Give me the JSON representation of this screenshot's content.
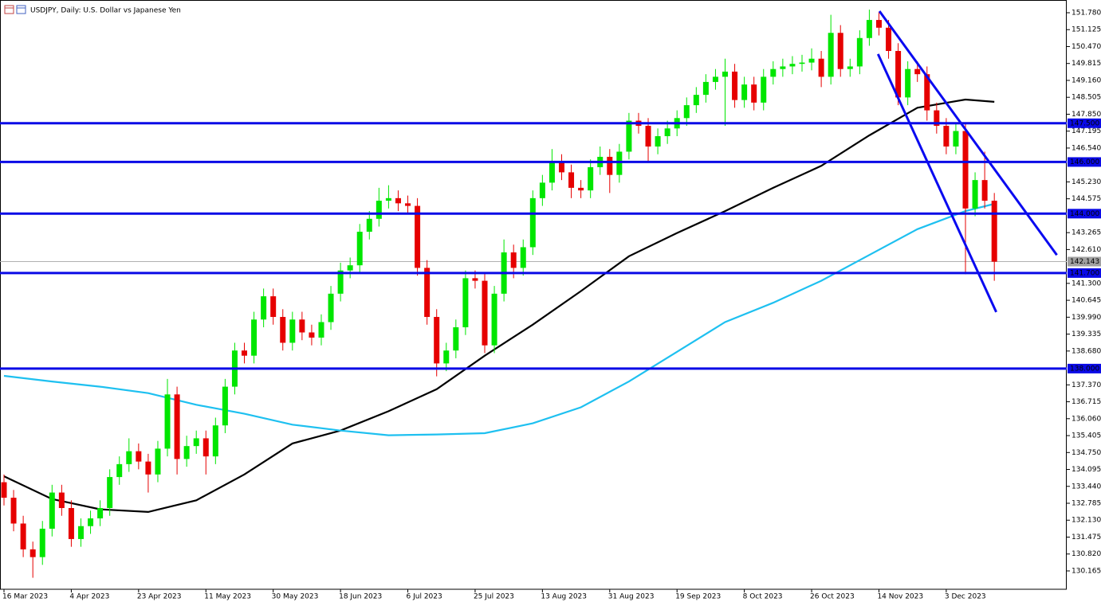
{
  "chart_data": {
    "type": "candlestick",
    "title": "USDJPY, Daily:  U.S. Dollar vs Japanese Yen",
    "up_color": "#00e600",
    "down_color": "#e60000",
    "categories": [
      "16 Mar 2023",
      null,
      null,
      null,
      null,
      null,
      null,
      "4 Apr 2023",
      null,
      null,
      null,
      null,
      null,
      null,
      "23 Apr 2023",
      null,
      null,
      null,
      null,
      null,
      null,
      "11 May 2023",
      null,
      null,
      null,
      null,
      null,
      null,
      "30 May 2023",
      null,
      null,
      null,
      null,
      null,
      null,
      "18 Jun 2023",
      null,
      null,
      null,
      null,
      null,
      null,
      "6 Jul 2023",
      null,
      null,
      null,
      null,
      null,
      null,
      "25 Jul 2023",
      null,
      null,
      null,
      null,
      null,
      null,
      "13 Aug 2023",
      null,
      null,
      null,
      null,
      null,
      null,
      "31 Aug 2023",
      null,
      null,
      null,
      null,
      null,
      null,
      "19 Sep 2023",
      null,
      null,
      null,
      null,
      null,
      null,
      "8 Oct 2023",
      null,
      null,
      null,
      null,
      null,
      null,
      "26 Oct 2023",
      null,
      null,
      null,
      null,
      null,
      null,
      "14 Nov 2023",
      null,
      null,
      null,
      null,
      null,
      null,
      "3 Dec 2023",
      null,
      null,
      null,
      null,
      null
    ],
    "open": [
      133.6,
      133.0,
      132.0,
      131.0,
      130.7,
      131.8,
      133.2,
      132.6,
      131.4,
      131.9,
      132.2,
      132.6,
      133.8,
      134.3,
      134.8,
      134.4,
      133.9,
      134.9,
      137.0,
      134.5,
      135.0,
      135.3,
      134.6,
      135.8,
      137.3,
      138.7,
      138.5,
      139.9,
      140.8,
      140.0,
      139.0,
      139.9,
      139.4,
      139.2,
      139.8,
      140.9,
      141.8,
      142.0,
      143.3,
      143.8,
      144.5,
      144.6,
      144.4,
      144.3,
      141.9,
      140.0,
      138.2,
      138.7,
      139.6,
      141.5,
      141.4,
      138.9,
      140.9,
      142.5,
      141.9,
      142.7,
      144.6,
      145.2,
      146.0,
      145.6,
      145.0,
      144.9,
      145.8,
      146.2,
      145.5,
      146.4,
      147.6,
      147.4,
      146.6,
      147.0,
      147.3,
      147.7,
      148.2,
      148.6,
      149.1,
      149.3,
      149.5,
      148.4,
      149.0,
      148.3,
      149.3,
      149.6,
      149.7,
      149.8,
      149.85,
      150.0,
      149.3,
      151.0,
      149.6,
      149.7,
      150.8,
      151.5,
      151.2,
      150.3,
      148.5,
      149.6,
      149.4,
      148.0,
      147.4,
      146.6,
      147.2,
      144.2,
      145.3,
      144.5
    ],
    "high": [
      133.9,
      133.3,
      132.3,
      131.3,
      132.1,
      133.5,
      133.5,
      132.9,
      132.2,
      132.5,
      132.9,
      134.1,
      134.6,
      135.3,
      135.1,
      134.7,
      135.2,
      137.6,
      137.3,
      135.4,
      135.6,
      135.6,
      136.1,
      137.6,
      139.0,
      139.0,
      140.2,
      141.1,
      141.1,
      140.3,
      140.2,
      140.2,
      139.7,
      140.1,
      141.2,
      142.1,
      142.3,
      143.6,
      144.1,
      145.0,
      145.1,
      144.9,
      144.7,
      144.6,
      142.2,
      140.3,
      139.0,
      139.9,
      141.8,
      141.8,
      141.7,
      141.2,
      143.0,
      142.8,
      143.0,
      144.9,
      145.5,
      146.5,
      146.3,
      145.9,
      145.3,
      146.1,
      146.6,
      146.5,
      146.7,
      147.9,
      147.9,
      147.7,
      147.3,
      147.6,
      148.0,
      148.5,
      148.9,
      149.4,
      149.6,
      150.0,
      149.8,
      149.3,
      149.3,
      149.6,
      149.9,
      150.0,
      150.1,
      150.15,
      150.4,
      150.3,
      151.7,
      151.3,
      150.0,
      151.1,
      151.9,
      151.8,
      151.5,
      150.6,
      149.9,
      149.9,
      149.7,
      148.3,
      147.7,
      147.5,
      147.5,
      145.6,
      146.4,
      144.8
    ],
    "low": [
      132.7,
      131.7,
      130.7,
      129.9,
      130.4,
      131.5,
      132.3,
      131.1,
      131.1,
      131.6,
      131.9,
      132.3,
      133.5,
      134.0,
      134.1,
      133.2,
      133.6,
      134.6,
      133.9,
      134.2,
      134.7,
      133.9,
      134.3,
      135.5,
      137.0,
      138.2,
      138.2,
      139.6,
      139.7,
      138.7,
      138.7,
      139.1,
      138.9,
      138.9,
      139.5,
      140.6,
      141.5,
      141.7,
      143.0,
      143.5,
      144.2,
      144.1,
      144.0,
      141.6,
      139.7,
      137.7,
      137.9,
      138.4,
      139.3,
      141.1,
      138.6,
      138.6,
      140.6,
      141.5,
      141.6,
      142.4,
      144.3,
      144.9,
      145.3,
      144.6,
      144.6,
      144.6,
      145.5,
      144.8,
      145.2,
      146.1,
      147.1,
      146.0,
      146.3,
      146.7,
      147.0,
      147.4,
      147.9,
      148.3,
      148.8,
      147.4,
      148.1,
      148.1,
      148.0,
      148.0,
      149.0,
      149.3,
      149.4,
      149.5,
      149.55,
      148.9,
      149.0,
      149.3,
      149.3,
      149.4,
      150.5,
      150.9,
      150.0,
      148.2,
      148.2,
      149.1,
      147.6,
      147.1,
      146.3,
      146.3,
      141.65,
      143.9,
      144.2,
      141.4
    ],
    "close": [
      133.0,
      132.0,
      131.0,
      130.7,
      131.8,
      133.2,
      132.6,
      131.4,
      131.9,
      132.2,
      132.6,
      133.8,
      134.3,
      134.8,
      134.4,
      133.9,
      134.9,
      137.0,
      134.5,
      135.0,
      135.3,
      134.6,
      135.8,
      137.3,
      138.7,
      138.5,
      139.9,
      140.8,
      140.0,
      139.0,
      139.9,
      139.4,
      139.2,
      139.8,
      140.9,
      141.8,
      142.0,
      143.3,
      143.8,
      144.5,
      144.6,
      144.4,
      144.3,
      141.9,
      140.0,
      138.2,
      138.7,
      139.6,
      141.5,
      141.4,
      138.9,
      140.9,
      142.5,
      141.9,
      142.7,
      144.6,
      145.2,
      146.0,
      145.6,
      145.0,
      144.9,
      145.8,
      146.2,
      145.5,
      146.4,
      147.6,
      147.4,
      146.6,
      147.0,
      147.3,
      147.7,
      148.2,
      148.6,
      149.1,
      149.3,
      149.5,
      148.4,
      149.0,
      148.3,
      149.3,
      149.6,
      149.7,
      149.8,
      149.85,
      150.0,
      149.3,
      151.0,
      149.6,
      149.7,
      150.8,
      151.5,
      151.2,
      150.3,
      148.5,
      149.6,
      149.4,
      148.0,
      147.4,
      146.6,
      147.2,
      144.2,
      145.3,
      144.5,
      142.14
    ],
    "lines": [
      {
        "color": "#000000",
        "x": [
          0,
          5,
          10,
          15,
          20,
          25,
          30,
          35,
          40,
          45,
          50,
          55,
          60,
          65,
          70,
          75,
          80,
          85,
          90,
          95,
          100,
          103
        ],
        "values": [
          133.83,
          132.95,
          132.55,
          132.45,
          132.9,
          133.9,
          135.1,
          135.6,
          136.35,
          137.2,
          138.5,
          139.7,
          141.0,
          142.35,
          143.25,
          144.1,
          145.0,
          145.85,
          147.03,
          148.1,
          148.42,
          148.33
        ]
      },
      {
        "color": "#1ec0f0",
        "x": [
          0,
          5,
          10,
          15,
          20,
          25,
          30,
          35,
          40,
          45,
          50,
          55,
          60,
          65,
          70,
          75,
          80,
          85,
          90,
          95,
          100,
          103
        ],
        "values": [
          137.72,
          137.5,
          137.3,
          137.05,
          136.6,
          136.25,
          135.83,
          135.6,
          135.42,
          135.45,
          135.5,
          135.88,
          136.5,
          137.5,
          138.65,
          139.8,
          140.55,
          141.4,
          142.4,
          143.4,
          144.1,
          144.38
        ]
      }
    ],
    "trendlines": [
      {
        "color": "#0a0af0",
        "x": [
          91.05,
          109.5
        ],
        "values": [
          151.84,
          142.4
        ]
      },
      {
        "color": "#0a0af0",
        "x": [
          90.9,
          103.2
        ],
        "values": [
          150.18,
          140.19
        ]
      }
    ],
    "levels": [
      {
        "value": 147.5,
        "label": "147.500"
      },
      {
        "value": 146.0,
        "label": "146.000"
      },
      {
        "value": 144.0,
        "label": "144.000"
      },
      {
        "value": 141.7,
        "label": "141.700"
      },
      {
        "value": 138.0,
        "label": "138.000"
      }
    ],
    "level_color": "#0a0ae6",
    "last_price": {
      "value": 142.143,
      "label": "142.143"
    },
    "xlim": [
      -0.415,
      110.53
    ],
    "ylim": [
      129.455,
      152.273
    ],
    "yticks": [
      {
        "value": 151.78,
        "label": "151.780"
      },
      {
        "value": 151.125,
        "label": "151.125"
      },
      {
        "value": 150.47,
        "label": "150.470"
      },
      {
        "value": 149.815,
        "label": "149.815"
      },
      {
        "value": 149.16,
        "label": "149.160"
      },
      {
        "value": 148.505,
        "label": "148.505"
      },
      {
        "value": 147.85,
        "label": "147.850"
      },
      {
        "value": 147.195,
        "label": "147.195"
      },
      {
        "value": 146.54,
        "label": "146.540"
      },
      {
        "value": 145.23,
        "label": "145.230"
      },
      {
        "value": 144.575,
        "label": "144.575"
      },
      {
        "value": 143.265,
        "label": "143.265"
      },
      {
        "value": 142.61,
        "label": "142.610"
      },
      {
        "value": 141.3,
        "label": "141.300"
      },
      {
        "value": 140.645,
        "label": "140.645"
      },
      {
        "value": 139.99,
        "label": "139.990"
      },
      {
        "value": 139.335,
        "label": "139.335"
      },
      {
        "value": 138.68,
        "label": "138.680"
      },
      {
        "value": 137.37,
        "label": "137.370"
      },
      {
        "value": 136.715,
        "label": "136.715"
      },
      {
        "value": 136.06,
        "label": "136.060"
      },
      {
        "value": 135.405,
        "label": "135.405"
      },
      {
        "value": 134.75,
        "label": "134.750"
      },
      {
        "value": 134.095,
        "label": "134.095"
      },
      {
        "value": 133.44,
        "label": "133.440"
      },
      {
        "value": 132.785,
        "label": "132.785"
      },
      {
        "value": 132.13,
        "label": "132.130"
      },
      {
        "value": 131.475,
        "label": "131.475"
      },
      {
        "value": 130.82,
        "label": "130.820"
      },
      {
        "value": 130.165,
        "label": "130.165"
      }
    ]
  }
}
